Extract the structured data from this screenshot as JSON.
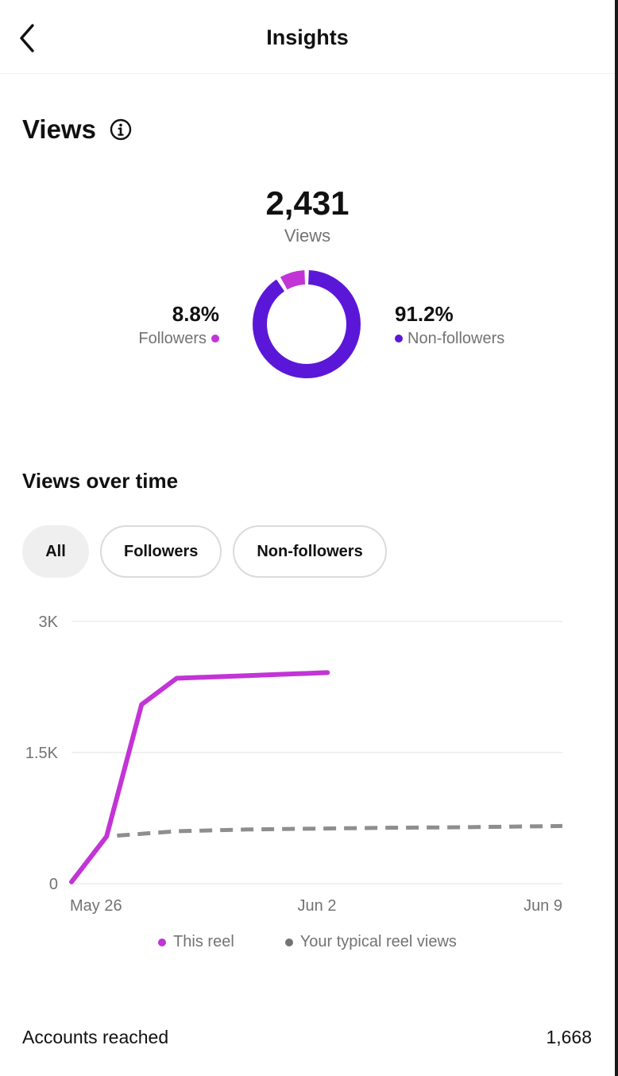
{
  "header": {
    "title": "Insights"
  },
  "views": {
    "title": "Views",
    "total": "2,431",
    "total_label": "Views",
    "followers": {
      "percent": "8.8%",
      "label": "Followers",
      "share": 8.8,
      "color": "#c234d6"
    },
    "non_followers": {
      "percent": "91.2%",
      "label": "Non-followers",
      "share": 91.2,
      "color": "#5b17d8"
    }
  },
  "views_over_time": {
    "title": "Views over time",
    "filters": [
      {
        "label": "All",
        "selected": true
      },
      {
        "label": "Followers",
        "selected": false
      },
      {
        "label": "Non-followers",
        "selected": false
      }
    ]
  },
  "chart_data": {
    "type": "line",
    "title": "Views over time",
    "xlabel": "",
    "ylabel": "",
    "x_ticks": [
      "May 26",
      "Jun 2",
      "Jun 9"
    ],
    "x_range": [
      0,
      14
    ],
    "y_ticks": [
      "0",
      "1.5K",
      "3K"
    ],
    "ylim": [
      0,
      3000
    ],
    "grid": true,
    "legend_position": "bottom",
    "series": [
      {
        "name": "This reel",
        "color": "#c234d6",
        "style": "solid",
        "points": [
          [
            0,
            20
          ],
          [
            1,
            540
          ],
          [
            2,
            2050
          ],
          [
            3,
            2350
          ],
          [
            4,
            2365
          ],
          [
            5,
            2380
          ],
          [
            6,
            2395
          ],
          [
            7,
            2410
          ],
          [
            7.3,
            2415
          ]
        ]
      },
      {
        "name": "Your typical reel views",
        "color": "#8e8e8e",
        "style": "dashed",
        "points": [
          [
            1.3,
            550
          ],
          [
            3,
            600
          ],
          [
            5,
            620
          ],
          [
            7,
            630
          ],
          [
            9,
            640
          ],
          [
            11,
            645
          ],
          [
            14,
            660
          ]
        ]
      }
    ]
  },
  "legend": {
    "this_reel": "This reel",
    "typical": "Your typical reel views"
  },
  "accounts_reached": {
    "label": "Accounts reached",
    "value": "1,668"
  }
}
